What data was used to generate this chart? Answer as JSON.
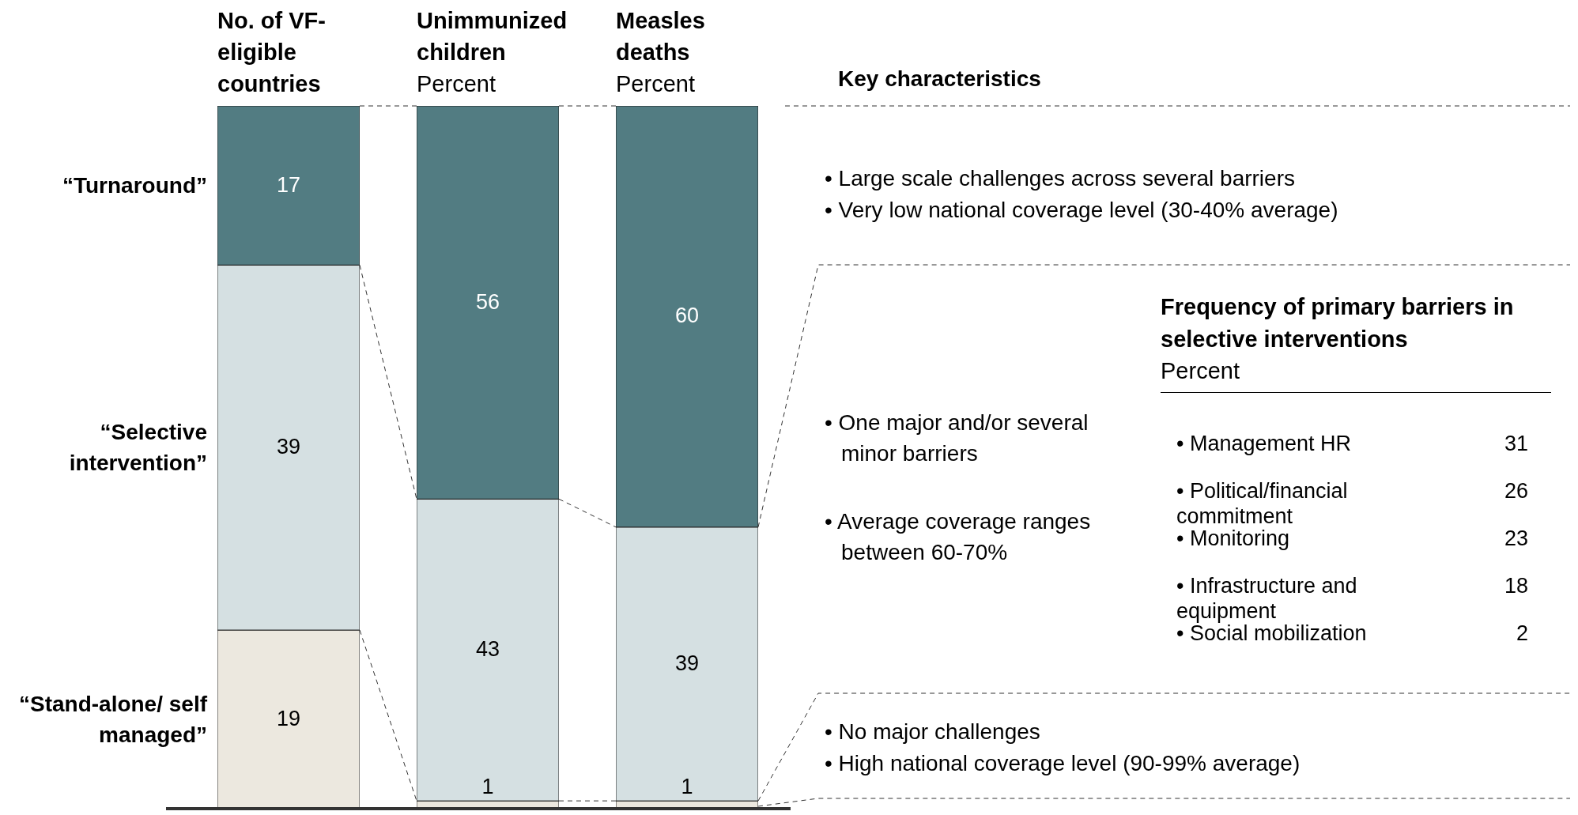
{
  "chart_data": [
    {
      "type": "bar",
      "title": "No. of VF-eligible countries",
      "categories": [
        null
      ],
      "stacked": true,
      "ylim": [
        0,
        75
      ],
      "data_labels": true,
      "series": [
        {
          "name": "“Stand-alone/ self managed”",
          "color": "#ece8df",
          "values": [
            19
          ]
        },
        {
          "name": "“Selective intervention”",
          "color": "#d5e0e2",
          "values": [
            39
          ]
        },
        {
          "name": "“Turnaround”",
          "color": "#527c82",
          "values": [
            17
          ]
        }
      ],
      "annotations": [
        "Key characteristics",
        "• Large scale challenges across several barriers",
        "• Very low national coverage level (30-40% average)",
        "• One major and/or several minor barriers",
        "• Average coverage ranges between 60-70%",
        "• No major challenges",
        "• High national coverage level (90-99% average)"
      ]
    },
    {
      "type": "bar",
      "title": "Unimmunized children",
      "subtitle": "Percent",
      "categories": [
        null
      ],
      "stacked": true,
      "ylim": [
        0,
        100
      ],
      "data_labels": true,
      "series": [
        {
          "color": "#ece8df",
          "values": [
            1
          ]
        },
        {
          "color": "#d5e0e2",
          "values": [
            43
          ]
        },
        {
          "color": "#527c82",
          "values": [
            56
          ]
        }
      ]
    },
    {
      "type": "bar",
      "title": "Measles deaths",
      "subtitle": "Percent",
      "categories": [
        null
      ],
      "stacked": true,
      "ylim": [
        0,
        100
      ],
      "data_labels": true,
      "series": [
        {
          "color": "#ece8df",
          "values": [
            1
          ]
        },
        {
          "color": "#d5e0e2",
          "values": [
            39
          ]
        },
        {
          "color": "#527c82",
          "values": [
            60
          ]
        }
      ]
    },
    {
      "type": "other",
      "title": "Frequency of primary barriers in selective interventions",
      "subtitle": "Percent",
      "categories": [
        "• Management HR",
        "• Political/financial commitment",
        "• Monitoring",
        "• Infrastructure and equipment",
        "• Social mobilization"
      ],
      "values": [
        31,
        26,
        23,
        18,
        2
      ],
      "data_labels": true
    }
  ]
}
